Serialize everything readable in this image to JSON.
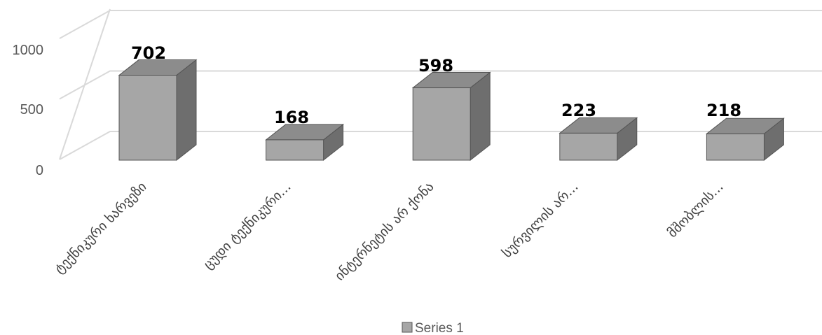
{
  "chart_data": {
    "type": "bar",
    "style": "3d-column",
    "categories": [
      "ტექნიკური ხარვეზი",
      "ცუდი ტექნიკური...",
      "ინტერნეტის არ ქონა",
      "სურვილის არ...",
      "მშობლის..."
    ],
    "series": [
      {
        "name": "Series 1",
        "values": [
          702,
          168,
          598,
          223,
          218
        ]
      }
    ],
    "data_labels": [
      "702",
      "168",
      "598",
      "223",
      "218"
    ],
    "yticks": [
      "0",
      "500",
      "1000"
    ],
    "ylim": [
      0,
      1000
    ],
    "grid": true,
    "legend": "bottom",
    "colors": {
      "front": "#a6a6a6",
      "top": "#8c8c8c",
      "side": "#6e6e6e",
      "edge": "#555555",
      "grid": "#d9d9d9"
    }
  }
}
